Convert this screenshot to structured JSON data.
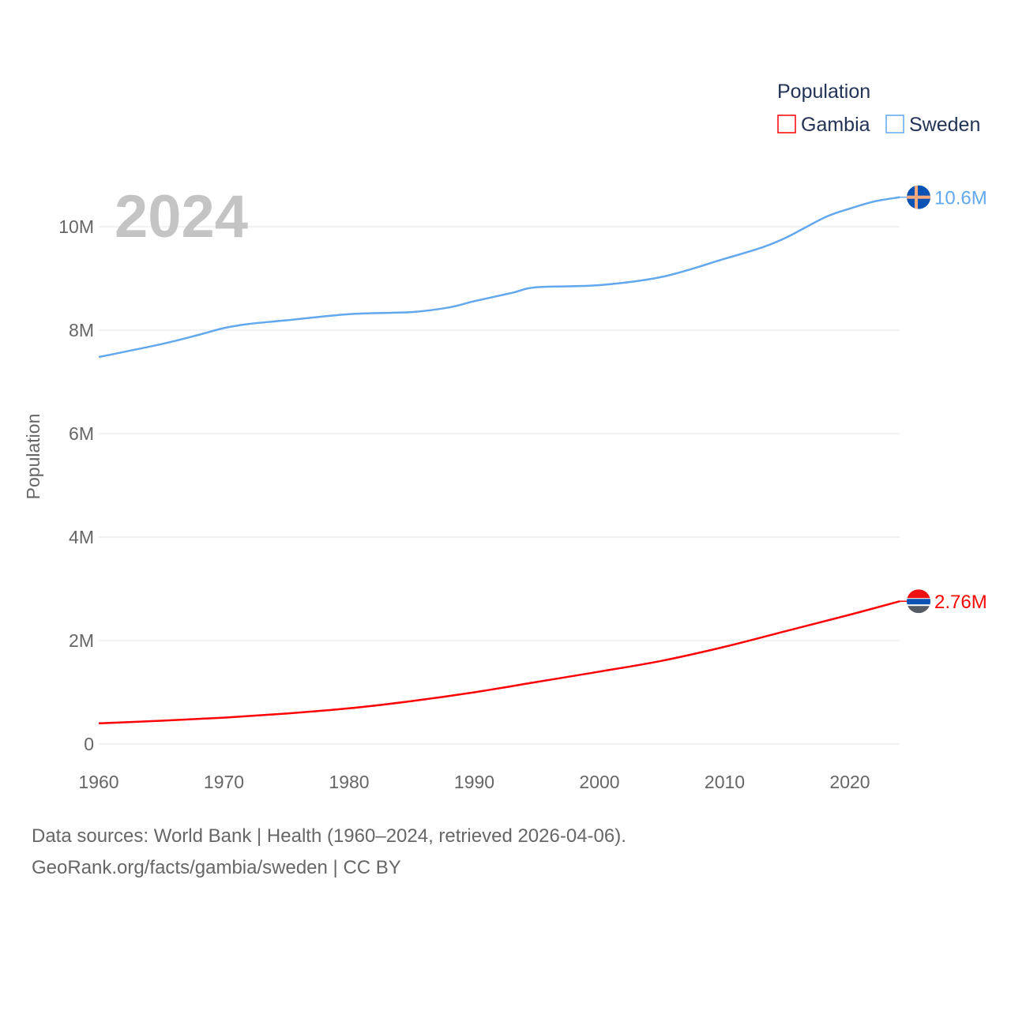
{
  "chart_data": {
    "type": "line",
    "title": "Population",
    "year_label": "2024",
    "ylabel": "Population",
    "xlabel": "",
    "xlim": [
      1960,
      2024
    ],
    "ylim": [
      0,
      10000000
    ],
    "x_ticks": [
      "1960",
      "1970",
      "1980",
      "1990",
      "2000",
      "2010",
      "2020"
    ],
    "y_ticks": [
      {
        "v": 0,
        "label": "0"
      },
      {
        "v": 2000000,
        "label": "2M"
      },
      {
        "v": 4000000,
        "label": "4M"
      },
      {
        "v": 6000000,
        "label": "6M"
      },
      {
        "v": 8000000,
        "label": "8M"
      },
      {
        "v": 10000000,
        "label": "10M"
      }
    ],
    "grid": true,
    "legend_position": "top-right",
    "series": [
      {
        "name": "Gambia",
        "color": "#ff0000",
        "end_label": "2.76M",
        "flag": "gambia-flag",
        "x": [
          1960,
          1965,
          1970,
          1975,
          1980,
          1985,
          1990,
          1995,
          2000,
          2005,
          2010,
          2015,
          2020,
          2024
        ],
        "values": [
          400000,
          450000,
          510000,
          590000,
          690000,
          830000,
          1000000,
          1200000,
          1400000,
          1610000,
          1880000,
          2190000,
          2500000,
          2760000
        ]
      },
      {
        "name": "Sweden",
        "color": "#62a8ee",
        "end_label": "10.6M",
        "flag": "sweden-flag",
        "x": [
          1960,
          1965,
          1968,
          1970,
          1972,
          1975,
          1980,
          1985,
          1988,
          1990,
          1993,
          1995,
          2000,
          2005,
          2010,
          2013,
          2015,
          2018,
          2020,
          2022,
          2024
        ],
        "values": [
          7480000,
          7730000,
          7910000,
          8040000,
          8120000,
          8190000,
          8310000,
          8350000,
          8440000,
          8560000,
          8720000,
          8830000,
          8870000,
          9030000,
          9380000,
          9600000,
          9800000,
          10180000,
          10350000,
          10490000,
          10570000
        ]
      }
    ]
  },
  "footer": {
    "line1": "Data sources: World Bank | Health (1960–2024, retrieved 2026-04-06).",
    "line2": "GeoRank.org/facts/gambia/sweden | CC BY"
  }
}
